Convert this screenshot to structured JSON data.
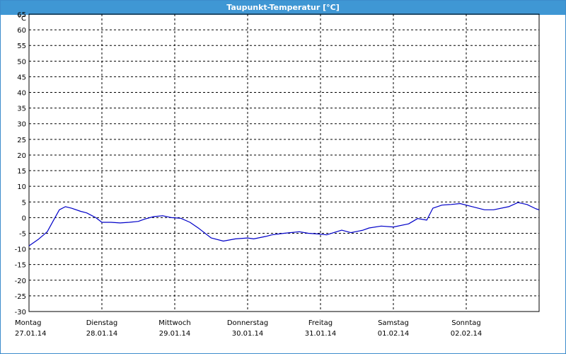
{
  "window": {
    "title": "Taupunkt-Temperatur [°C]"
  },
  "colors": {
    "title_bar": "#3f97d4",
    "series": "#0000c8",
    "grid": "#000000"
  },
  "chart_data": {
    "type": "line",
    "title": "Taupunkt-Temperatur [°C]",
    "ylabel": "°C",
    "ylim": [
      -30,
      65
    ],
    "ystep": 5,
    "y_unit": "°C",
    "grid": "dashed",
    "xlim": [
      "2014-01-27T00:00",
      "2014-02-03T00:00"
    ],
    "x_ticks": [
      {
        "day": "Montag",
        "date": "27.01.14"
      },
      {
        "day": "Dienstag",
        "date": "28.01.14"
      },
      {
        "day": "Mittwoch",
        "date": "29.01.14"
      },
      {
        "day": "Donnerstag",
        "date": "30.01.14"
      },
      {
        "day": "Freitag",
        "date": "31.01.14"
      },
      {
        "day": "Samstag",
        "date": "01.02.14"
      },
      {
        "day": "Sonntag",
        "date": "02.02.14"
      }
    ],
    "series": [
      {
        "x": [
          "2014-01-27T00:00",
          "2014-01-27T03:00",
          "2014-01-27T06:00",
          "2014-01-27T08:00",
          "2014-01-27T10:00",
          "2014-01-27T12:00",
          "2014-01-27T14:00",
          "2014-01-27T17:00",
          "2014-01-27T19:00",
          "2014-01-27T22:00",
          "2014-01-28T00:00",
          "2014-01-28T03:00",
          "2014-01-28T06:00",
          "2014-01-28T09:00",
          "2014-01-28T12:00",
          "2014-01-28T14:00",
          "2014-01-28T17:00",
          "2014-01-28T20:00",
          "2014-01-28T23:00",
          "2014-01-29T02:00",
          "2014-01-29T05:00",
          "2014-01-29T08:00",
          "2014-01-29T12:00",
          "2014-01-29T16:00",
          "2014-01-29T20:00",
          "2014-01-30T00:00",
          "2014-01-30T02:00",
          "2014-01-30T06:00",
          "2014-01-30T08:00",
          "2014-01-30T12:00",
          "2014-01-30T17:00",
          "2014-01-30T20:00",
          "2014-01-30T23:00",
          "2014-01-31T02:00",
          "2014-01-31T07:00",
          "2014-01-31T10:00",
          "2014-01-31T14:00",
          "2014-01-31T16:00",
          "2014-01-31T20:00",
          "2014-02-01T00:00",
          "2014-02-01T05:00",
          "2014-02-01T08:00",
          "2014-02-01T11:00",
          "2014-02-01T13:00",
          "2014-02-01T16:00",
          "2014-02-01T19:00",
          "2014-02-01T22:00",
          "2014-02-02T02:00",
          "2014-02-02T06:00",
          "2014-02-02T09:00",
          "2014-02-02T14:00",
          "2014-02-02T17:00",
          "2014-02-02T20:00",
          "2014-02-02T23:00",
          "2014-02-03T00:00"
        ],
        "y": [
          -9,
          -7,
          -4.5,
          -1,
          2.5,
          3.5,
          3,
          2,
          1.5,
          0,
          -1.5,
          -1.5,
          -1.7,
          -1.5,
          -1.2,
          -0.5,
          0.3,
          0.6,
          0,
          -0.2,
          -1.5,
          -3.5,
          -6.5,
          -7.5,
          -6.8,
          -6.5,
          -6.8,
          -6,
          -5.5,
          -5,
          -4.5,
          -5,
          -5.2,
          -5.5,
          -4,
          -4.8,
          -4,
          -3.3,
          -2.7,
          -3,
          -2,
          -0.3,
          -0.8,
          3,
          4,
          4.2,
          4.5,
          3.5,
          2.5,
          2.5,
          3.5,
          4.8,
          4.2,
          2.8,
          2.5
        ]
      }
    ]
  }
}
